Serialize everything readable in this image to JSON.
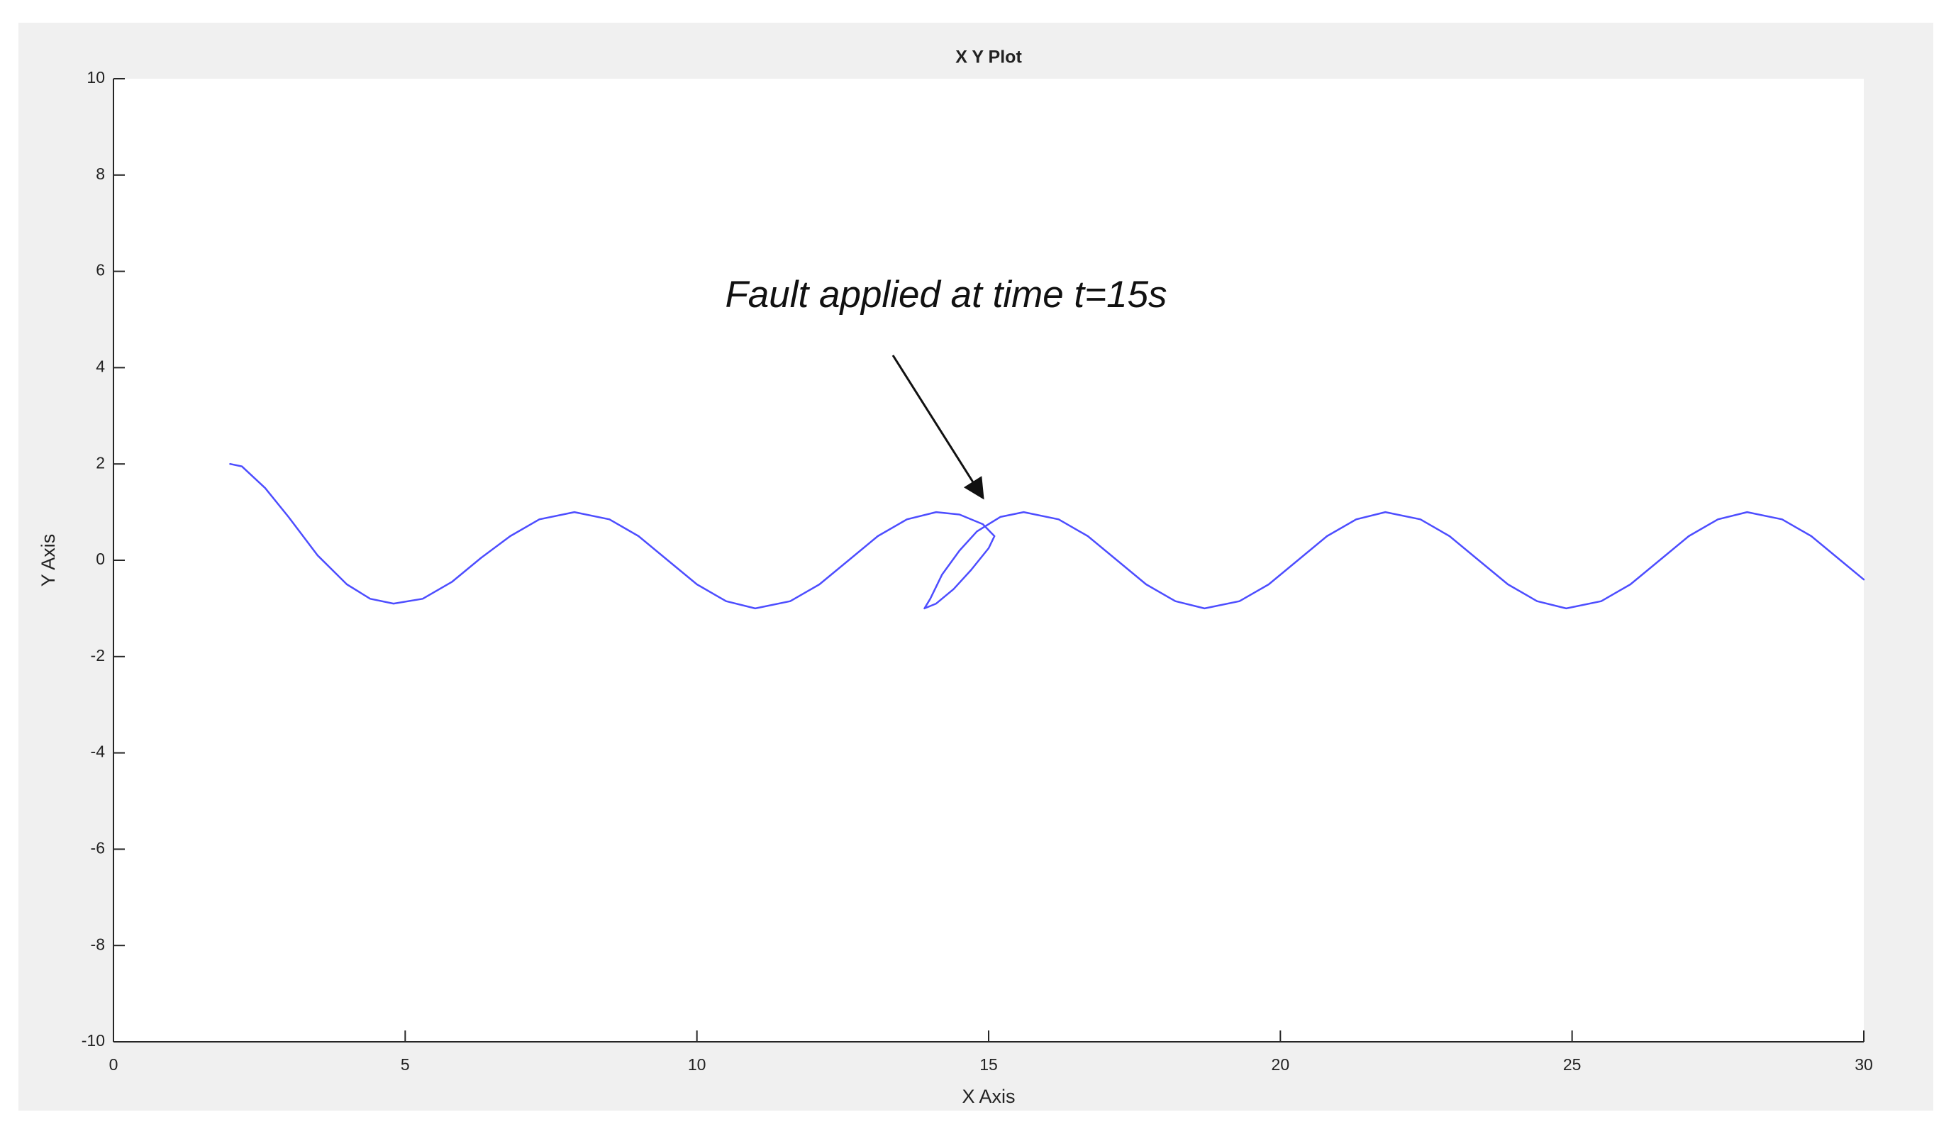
{
  "chart_data": {
    "type": "line",
    "title": "X Y Plot",
    "xlabel": "X Axis",
    "ylabel": "Y Axis",
    "annotation": "Fault applied at time t=15s",
    "color": "#4d4dff",
    "x": [
      2.0,
      2.2,
      2.6,
      3.0,
      3.5,
      4.0,
      4.4,
      4.8,
      5.3,
      5.8,
      6.3,
      6.8,
      7.3,
      7.9,
      8.5,
      9.0,
      9.5,
      10.0,
      10.5,
      11.0,
      11.6,
      12.1,
      12.6,
      13.1,
      13.6,
      14.1,
      14.5,
      14.9,
      15.1,
      15.0,
      14.7,
      14.4,
      14.1,
      13.9,
      14.0,
      14.2,
      14.5,
      14.8,
      15.2,
      15.6,
      16.2,
      16.7,
      17.2,
      17.7,
      18.2,
      18.7,
      19.3,
      19.8,
      20.3,
      20.8,
      21.3,
      21.8,
      22.4,
      22.9,
      23.4,
      23.9,
      24.4,
      24.9,
      25.5,
      26.0,
      26.5,
      27.0,
      27.5,
      28.0,
      28.6,
      29.1,
      29.6,
      30.0
    ],
    "values": [
      2.0,
      1.95,
      1.5,
      0.9,
      0.1,
      -0.5,
      -0.8,
      -0.9,
      -0.8,
      -0.45,
      0.05,
      0.5,
      0.85,
      1.0,
      0.85,
      0.5,
      0.0,
      -0.5,
      -0.85,
      -1.0,
      -0.85,
      -0.5,
      0.0,
      0.5,
      0.85,
      1.0,
      0.95,
      0.75,
      0.5,
      0.25,
      -0.2,
      -0.6,
      -0.9,
      -1.0,
      -0.8,
      -0.3,
      0.2,
      0.6,
      0.9,
      1.0,
      0.85,
      0.5,
      0.0,
      -0.5,
      -0.85,
      -1.0,
      -0.85,
      -0.5,
      0.0,
      0.5,
      0.85,
      1.0,
      0.85,
      0.5,
      0.0,
      -0.5,
      -0.85,
      -1.0,
      -0.85,
      -0.5,
      0.0,
      0.5,
      0.85,
      1.0,
      0.85,
      0.5,
      0.0,
      -0.4
    ],
    "xlim": [
      0,
      30
    ],
    "xticks": [
      0,
      5,
      10,
      15,
      20,
      25,
      30
    ],
    "ylim": [
      -10,
      10
    ],
    "yticks": [
      -10,
      -8,
      -6,
      -4,
      -2,
      0,
      2,
      4,
      6,
      8,
      10
    ]
  }
}
